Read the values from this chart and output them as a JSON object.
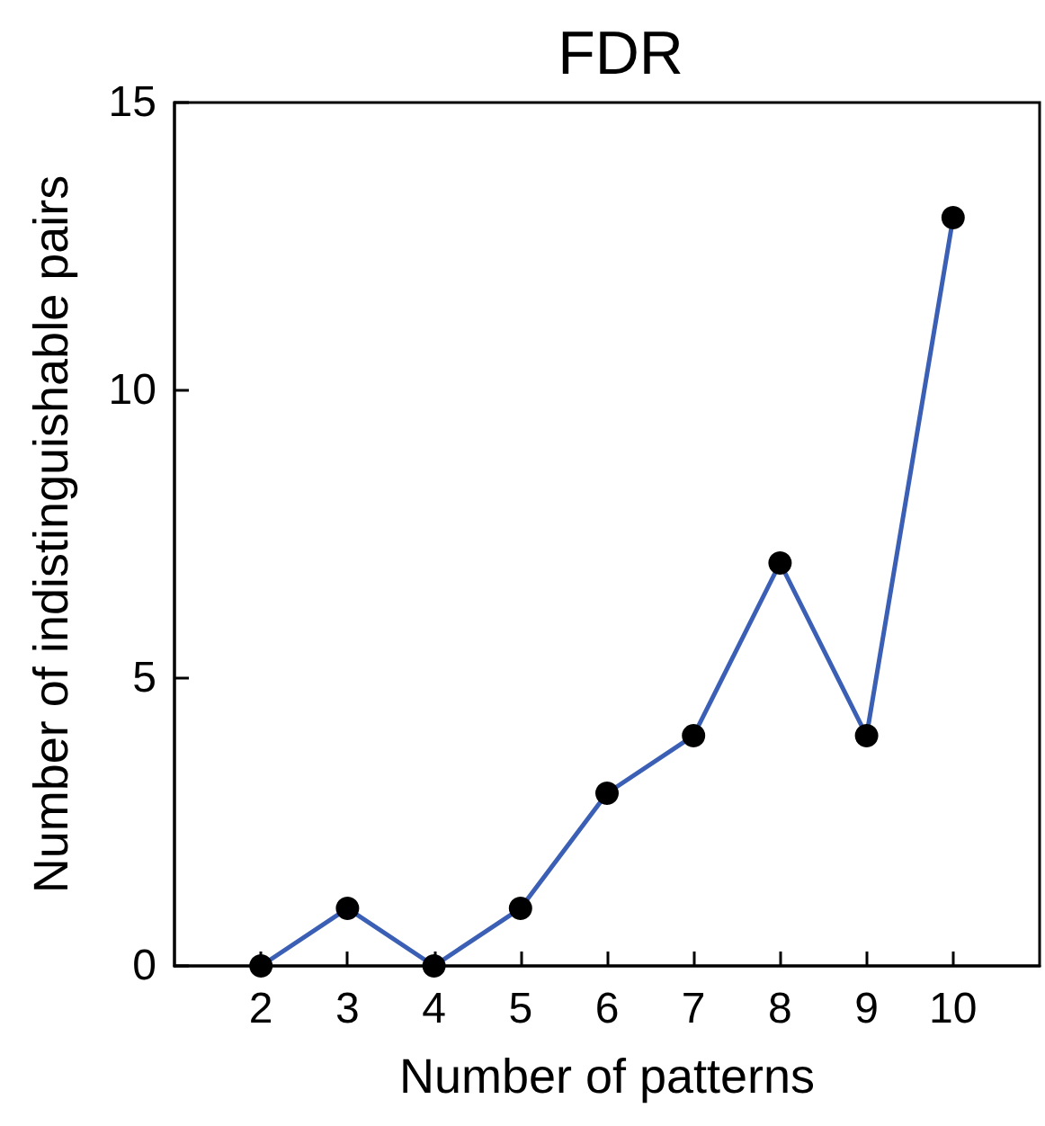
{
  "chart_data": {
    "type": "line",
    "title": "FDR",
    "xlabel": "Number of patterns",
    "ylabel": "Number of indistinguishable pairs",
    "x": [
      2,
      3,
      4,
      5,
      6,
      7,
      8,
      9,
      10
    ],
    "series": [
      {
        "color": "#3a5fb5",
        "values": [
          0,
          1,
          0,
          1,
          3,
          4,
          7,
          4,
          13
        ]
      }
    ],
    "xlim": [
      1,
      11
    ],
    "xticks": [
      2,
      3,
      4,
      5,
      6,
      7,
      8,
      9,
      10
    ],
    "ylim": [
      0,
      15
    ],
    "yticks": [
      0,
      5,
      10,
      15
    ],
    "marker": "circle",
    "line_style": "solid",
    "grid": false
  }
}
